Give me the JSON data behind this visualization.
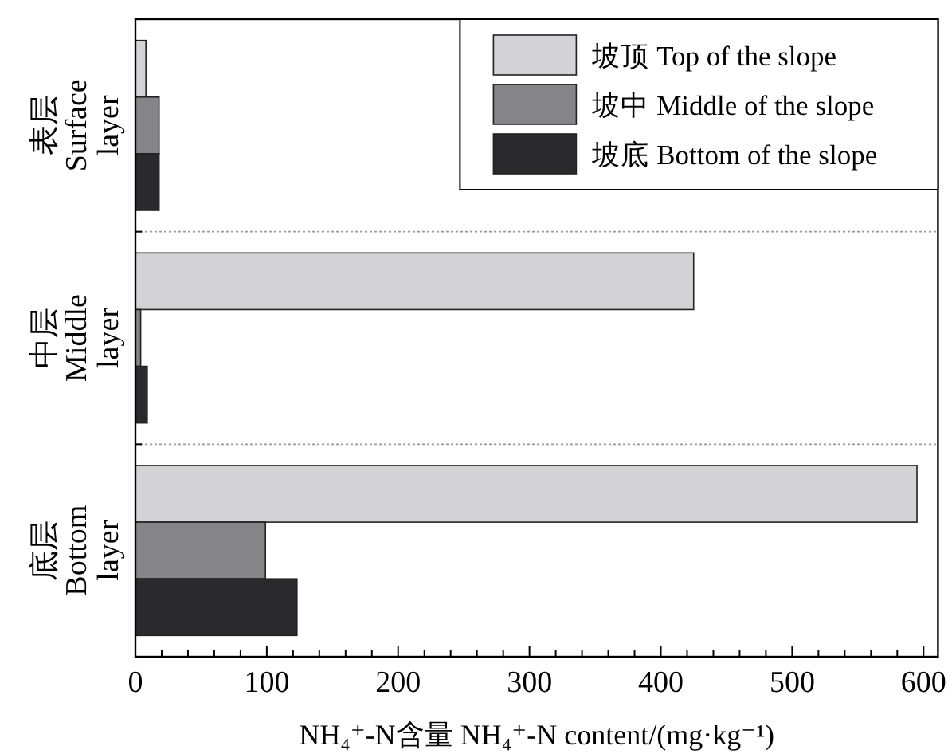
{
  "chart_data": {
    "type": "bar",
    "orientation": "horizontal",
    "xlabel": "NH₄⁺-N含量 NH₄⁺-N content/(mg·kg⁻¹)",
    "categories": [
      "表层 Surface layer",
      "中层 Middle layer",
      "底层 Bottom layer"
    ],
    "series": [
      {
        "name": "坡顶 Top of the slope",
        "color": "#d3d3d5",
        "values": [
          8,
          425,
          595
        ]
      },
      {
        "name": "坡中 Middle of the slope",
        "color": "#858487",
        "values": [
          18,
          4,
          99
        ]
      },
      {
        "name": "坡底 Bottom of the slope",
        "color": "#2a2a2c",
        "values": [
          18,
          9,
          123
        ]
      }
    ],
    "xlim": [
      0,
      611
    ],
    "xticks": [
      0,
      {
        "value": 20,
        "label": null
      },
      {
        "value": 40,
        "label": null
      },
      {
        "value": 60,
        "label": null
      },
      {
        "value": 80,
        "label": null
      },
      100,
      {
        "value": 120,
        "label": null
      },
      {
        "value": 140,
        "label": null
      },
      {
        "value": 160,
        "label": null
      },
      {
        "value": 180,
        "label": null
      },
      200,
      {
        "value": 220,
        "label": null
      },
      {
        "value": 240,
        "label": null
      },
      {
        "value": 260,
        "label": null
      },
      {
        "value": 280,
        "label": null
      },
      300,
      {
        "value": 320,
        "label": null
      },
      {
        "value": 340,
        "label": null
      },
      {
        "value": 360,
        "label": null
      },
      {
        "value": 380,
        "label": null
      },
      400,
      {
        "value": 420,
        "label": null
      },
      {
        "value": 440,
        "label": null
      },
      {
        "value": 460,
        "label": null
      },
      {
        "value": 480,
        "label": null
      },
      500,
      {
        "value": 520,
        "label": null
      },
      {
        "value": 540,
        "label": null
      },
      {
        "value": 560,
        "label": null
      },
      {
        "value": 580,
        "label": null
      },
      600
    ],
    "legend": "top right"
  }
}
